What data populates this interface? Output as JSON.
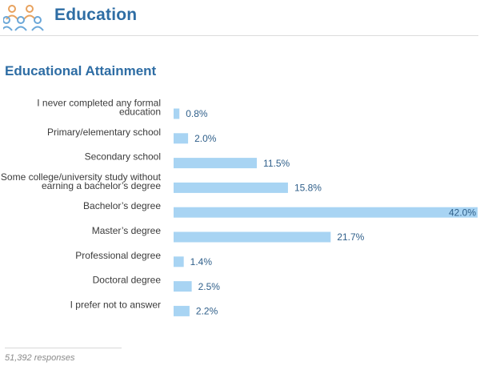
{
  "header": {
    "title": "Education",
    "icon": "people-group-icon"
  },
  "section": {
    "title": "Educational Attainment"
  },
  "footer": {
    "responses": "51,392 responses"
  },
  "colors": {
    "bar": "#a8d4f3",
    "accent": "#2e6da4",
    "value_text": "#2f5f8a",
    "icon_orange": "#e8a25e",
    "icon_blue": "#6aa7d8"
  },
  "chart_data": {
    "type": "bar",
    "orientation": "horizontal",
    "title": "",
    "xlabel": "",
    "ylabel": "",
    "xlim": [
      0,
      42
    ],
    "grid": false,
    "categories": [
      [
        "I never completed any formal",
        "education"
      ],
      [
        "Primary/elementary school"
      ],
      [
        "Secondary school"
      ],
      [
        "Some college/university study without",
        "earning a bachelor’s degree"
      ],
      [
        "Bachelor’s degree"
      ],
      [
        "Master’s degree"
      ],
      [
        "Professional degree"
      ],
      [
        "Doctoral degree"
      ],
      [
        "I prefer not to answer"
      ]
    ],
    "values": [
      0.8,
      2.0,
      11.5,
      15.8,
      42.0,
      21.7,
      1.4,
      2.5,
      2.2
    ],
    "value_labels": [
      "0.8%",
      "2.0%",
      "11.5%",
      "15.8%",
      "42.0%",
      "21.7%",
      "1.4%",
      "2.5%",
      "2.2%"
    ]
  }
}
